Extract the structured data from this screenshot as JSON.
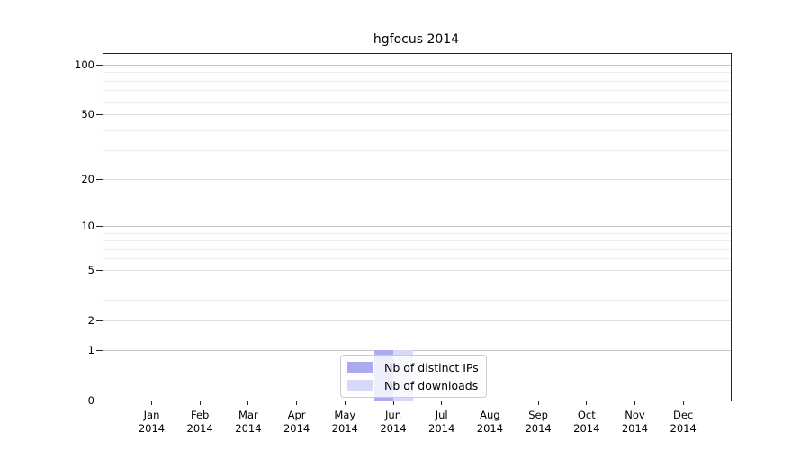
{
  "title": "hgfocus 2014",
  "chart_data": {
    "type": "bar",
    "title": "hgfocus 2014",
    "categories": [
      {
        "month": "Jan",
        "year": "2014"
      },
      {
        "month": "Feb",
        "year": "2014"
      },
      {
        "month": "Mar",
        "year": "2014"
      },
      {
        "month": "Apr",
        "year": "2014"
      },
      {
        "month": "May",
        "year": "2014"
      },
      {
        "month": "Jun",
        "year": "2014"
      },
      {
        "month": "Jul",
        "year": "2014"
      },
      {
        "month": "Aug",
        "year": "2014"
      },
      {
        "month": "Sep",
        "year": "2014"
      },
      {
        "month": "Oct",
        "year": "2014"
      },
      {
        "month": "Nov",
        "year": "2014"
      },
      {
        "month": "Dec",
        "year": "2014"
      }
    ],
    "series": [
      {
        "name": "Nb of distinct IPs",
        "color": "#a9abee",
        "values": [
          0,
          0,
          0,
          0,
          0,
          1,
          0,
          0,
          0,
          0,
          0,
          0
        ]
      },
      {
        "name": "Nb of downloads",
        "color": "#d7d9f6",
        "values": [
          0,
          0,
          0,
          0,
          0,
          1,
          0,
          0,
          0,
          0,
          0,
          0
        ]
      }
    ],
    "y_scale": "log1p",
    "y_major_ticks": [
      0,
      1,
      2,
      5,
      10,
      20,
      50,
      100
    ],
    "y_minor_ticks": [
      3,
      4,
      6,
      7,
      8,
      9,
      30,
      40,
      60,
      70,
      80,
      90
    ],
    "y_decade_ticks": [
      1,
      10,
      100
    ],
    "ylim": [
      0,
      116
    ],
    "xlabel": "",
    "ylabel": "",
    "grid": true,
    "legend_position": "lower center"
  },
  "colors": {
    "axis": "#262626",
    "grid_minor": "#eeeeee",
    "grid_major": "#e0e0e0",
    "grid_decade": "#c6c6c6"
  }
}
